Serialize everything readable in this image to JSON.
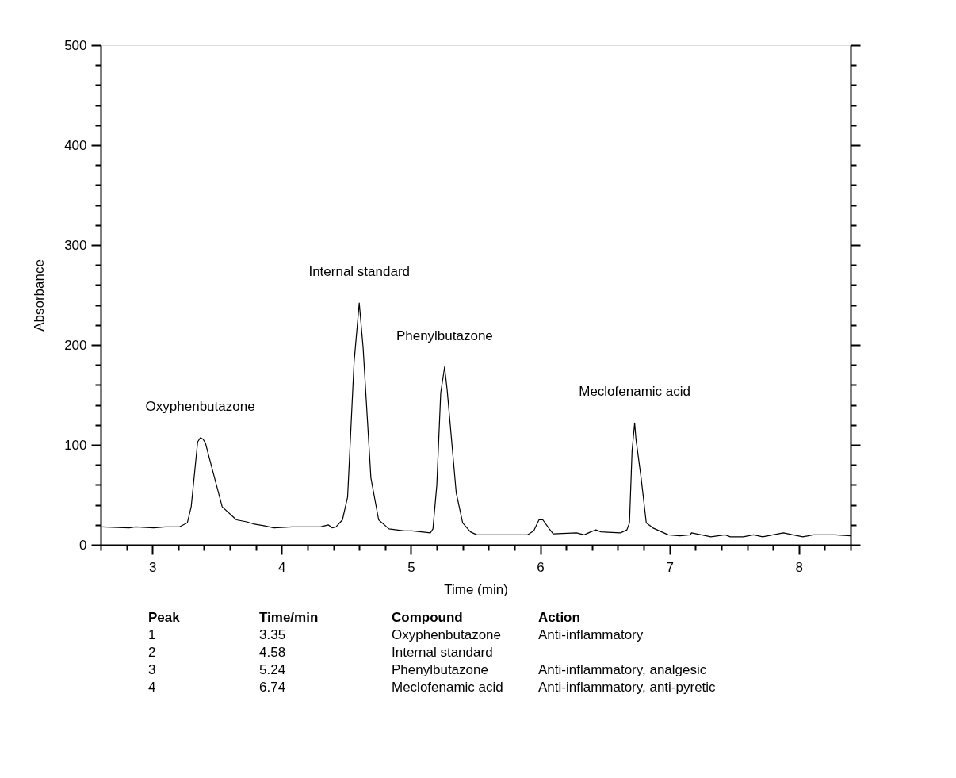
{
  "chart_data": {
    "type": "line",
    "xlabel": "Time (min)",
    "ylabel": "Absorbance",
    "series": [
      {
        "color": "#000000",
        "x": [
          2.61,
          2.82,
          2.87,
          3.01,
          3.1,
          3.21,
          3.27,
          3.3,
          3.35,
          3.37,
          3.39,
          3.41,
          3.44,
          3.54,
          3.65,
          3.73,
          3.78,
          3.87,
          3.94,
          4.08,
          4.3,
          4.36,
          4.39,
          4.42,
          4.47,
          4.51,
          4.56,
          4.6,
          4.63,
          4.69,
          4.75,
          4.83,
          4.95,
          5.01,
          5.15,
          5.17,
          5.2,
          5.23,
          5.26,
          5.28,
          5.35,
          5.4,
          5.46,
          5.51,
          5.9,
          5.95,
          5.99,
          6.02,
          6.07,
          6.1,
          6.28,
          6.34,
          6.39,
          6.43,
          6.47,
          6.62,
          6.67,
          6.69,
          6.71,
          6.73,
          6.74,
          6.78,
          6.82,
          6.87,
          6.99,
          7.08,
          7.16,
          7.17,
          7.32,
          7.43,
          7.47,
          7.57,
          7.65,
          7.72,
          7.88,
          8.03,
          8.11,
          8.28,
          8.4
        ],
        "values": [
          18,
          17,
          18,
          17,
          18,
          18,
          22,
          38,
          103,
          107,
          106,
          102,
          87,
          38,
          25,
          23,
          21,
          19,
          17,
          18,
          18,
          20,
          17,
          18,
          25,
          48,
          183,
          242,
          197,
          67,
          25,
          16,
          14,
          14,
          12,
          16,
          60,
          152,
          178,
          155,
          52,
          22,
          13,
          10,
          10,
          14,
          25,
          25,
          16,
          11,
          12,
          10,
          13,
          15,
          13,
          12,
          15,
          22,
          94,
          122,
          106,
          67,
          22,
          17,
          10,
          9,
          10,
          12,
          8,
          10,
          8,
          8,
          10,
          8,
          12,
          8,
          10,
          10,
          9
        ]
      }
    ],
    "xlim": [
      2.6,
      8.4
    ],
    "xticks": [
      {
        "value": 2.6,
        "label": null
      },
      {
        "value": 2.8,
        "label": null
      },
      3,
      {
        "value": 3.2,
        "label": null
      },
      {
        "value": 3.4,
        "label": null
      },
      {
        "value": 3.6,
        "label": null
      },
      {
        "value": 3.8,
        "label": null
      },
      4,
      {
        "value": 4.2,
        "label": null
      },
      {
        "value": 4.4,
        "label": null
      },
      {
        "value": 4.6,
        "label": null
      },
      {
        "value": 4.8,
        "label": null
      },
      5,
      {
        "value": 5.2,
        "label": null
      },
      {
        "value": 5.4,
        "label": null
      },
      {
        "value": 5.6,
        "label": null
      },
      {
        "value": 5.8,
        "label": null
      },
      6,
      {
        "value": 6.2,
        "label": null
      },
      {
        "value": 6.4,
        "label": null
      },
      {
        "value": 6.6,
        "label": null
      },
      {
        "value": 6.8,
        "label": null
      },
      7,
      {
        "value": 7.2,
        "label": null
      },
      {
        "value": 7.4,
        "label": null
      },
      {
        "value": 7.6,
        "label": null
      },
      {
        "value": 7.8,
        "label": null
      },
      8,
      {
        "value": 8.2,
        "label": null
      },
      {
        "value": 8.4,
        "label": null
      }
    ],
    "ylim": [
      0,
      500
    ],
    "yticks": [
      0,
      {
        "value": 20,
        "label": null
      },
      {
        "value": 40,
        "label": null
      },
      {
        "value": 60,
        "label": null
      },
      {
        "value": 80,
        "label": null
      },
      100,
      {
        "value": 120,
        "label": null
      },
      {
        "value": 140,
        "label": null
      },
      {
        "value": 160,
        "label": null
      },
      {
        "value": 180,
        "label": null
      },
      200,
      {
        "value": 220,
        "label": null
      },
      {
        "value": 240,
        "label": null
      },
      {
        "value": 260,
        "label": null
      },
      {
        "value": 280,
        "label": null
      },
      300,
      {
        "value": 320,
        "label": null
      },
      {
        "value": 340,
        "label": null
      },
      {
        "value": 360,
        "label": null
      },
      {
        "value": 380,
        "label": null
      },
      400,
      {
        "value": 420,
        "label": null
      },
      {
        "value": 440,
        "label": null
      },
      {
        "value": 460,
        "label": null
      },
      {
        "value": 480,
        "label": null
      },
      500
    ],
    "grid": false,
    "annotations": [
      {
        "text": "Oxyphenbutazone",
        "x": 3.37,
        "y": 107
      },
      {
        "text": "Internal standard",
        "x": 4.6,
        "y": 242
      },
      {
        "text": "Phenylbutazone",
        "x": 5.26,
        "y": 178
      },
      {
        "text": "Meclofenamic acid",
        "x": 6.73,
        "y": 122
      },
      "Peak\tTime/min\tCompound\tAction",
      "1\t3.35\tOxyphenbutazone\tAnti-inflammatory",
      "2\t4.58\tInternal standard",
      "3\t5.24\tPhenylbutazone\tAnti-inflammatory, analgesic",
      "4\t6.74\tMeclofenamic acid\tAnti-inflammatory, anti-pyretic"
    ]
  }
}
